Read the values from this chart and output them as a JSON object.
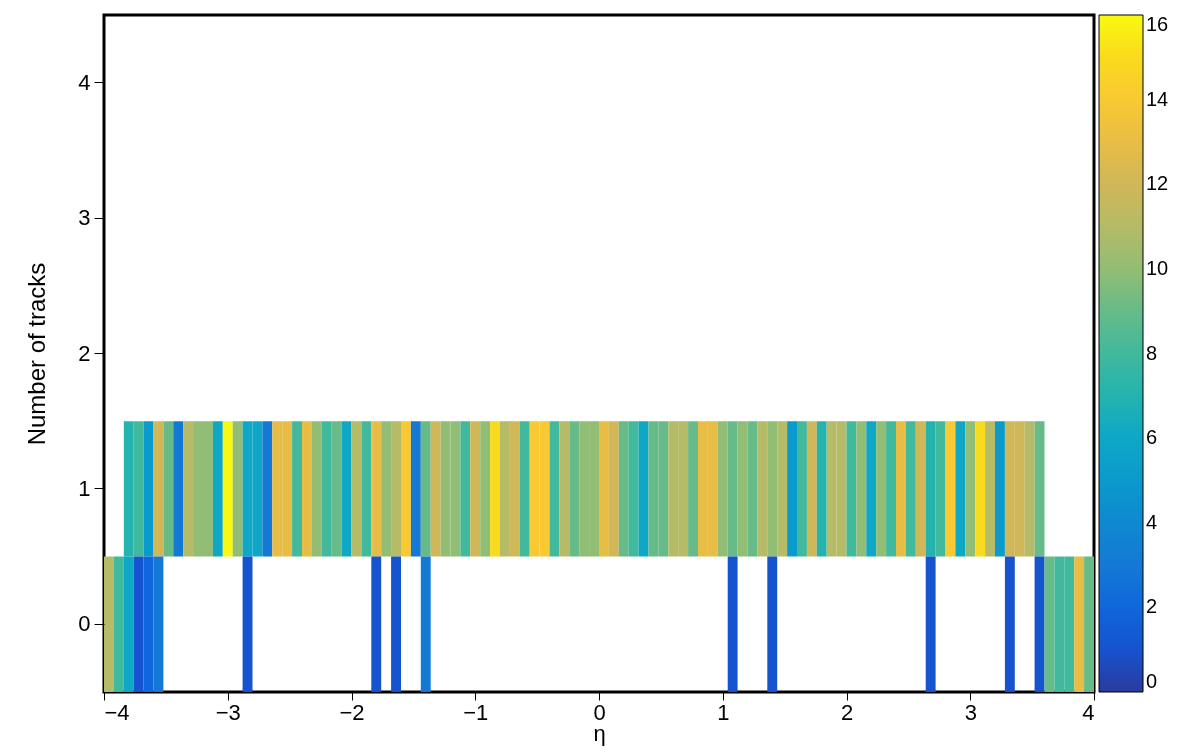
{
  "chart_data": {
    "type": "heatmap",
    "xlabel": "η",
    "ylabel": "Number of tracks",
    "x": [
      -3.96,
      -3.88,
      -3.8,
      -3.72,
      -3.64,
      -3.56,
      -3.48,
      -3.4,
      -3.32,
      -3.24,
      -3.16,
      -3.08,
      -3,
      -2.92,
      -2.84,
      -2.76,
      -2.68,
      -2.6,
      -2.52,
      -2.44,
      -2.36,
      -2.28,
      -2.2,
      -2.12,
      -2.04,
      -1.96,
      -1.88,
      -1.8,
      -1.72,
      -1.64,
      -1.56,
      -1.48,
      -1.4,
      -1.32,
      -1.24,
      -1.16,
      -1.08,
      -1,
      -0.92,
      -0.84,
      -0.76,
      -0.68,
      -0.6,
      -0.52,
      -0.44,
      -0.36,
      -0.28,
      -0.2,
      -0.12,
      -0.04,
      0.04,
      0.12,
      0.2,
      0.28,
      0.36,
      0.44,
      0.52,
      0.6,
      0.68,
      0.76,
      0.84,
      0.92,
      1,
      1.08,
      1.16,
      1.24,
      1.32,
      1.4,
      1.48,
      1.56,
      1.64,
      1.72,
      1.8,
      1.88,
      1.96,
      2.04,
      2.12,
      2.2,
      2.28,
      2.36,
      2.44,
      2.52,
      2.6,
      2.68,
      2.76,
      2.84,
      2.92,
      3,
      3.08,
      3.16,
      3.24,
      3.32,
      3.4,
      3.48,
      3.56,
      3.64,
      3.72,
      3.8,
      3.88,
      3.96
    ],
    "y_categories": [
      "4",
      "3",
      "2",
      "1",
      "0"
    ],
    "cells": [
      [
        null,
        null,
        null,
        null,
        null,
        null,
        null,
        null,
        null,
        null,
        null,
        null,
        null,
        null,
        null,
        null,
        null,
        null,
        null,
        null,
        null,
        null,
        null,
        null,
        null,
        null,
        null,
        null,
        null,
        null,
        null,
        null,
        null,
        null,
        null,
        null,
        null,
        null,
        null,
        null,
        null,
        null,
        null,
        null,
        null,
        null,
        null,
        null,
        null,
        null,
        null,
        null,
        null,
        null,
        null,
        null,
        null,
        null,
        null,
        null,
        null,
        null,
        null,
        null,
        null,
        null,
        null,
        null,
        null,
        null,
        null,
        null,
        null,
        null,
        null,
        null,
        null,
        null,
        null,
        null,
        null,
        null,
        null,
        null,
        null,
        null,
        null,
        null,
        null,
        null,
        null,
        null,
        null,
        null,
        null,
        null,
        null,
        null,
        null,
        null
      ],
      [
        null,
        null,
        null,
        null,
        null,
        null,
        null,
        null,
        null,
        null,
        null,
        null,
        null,
        null,
        null,
        null,
        null,
        null,
        null,
        null,
        null,
        null,
        null,
        null,
        null,
        null,
        null,
        null,
        null,
        null,
        null,
        null,
        null,
        null,
        null,
        null,
        null,
        null,
        null,
        null,
        null,
        null,
        null,
        null,
        null,
        null,
        null,
        null,
        null,
        null,
        null,
        null,
        null,
        null,
        null,
        null,
        null,
        null,
        null,
        null,
        null,
        null,
        null,
        null,
        null,
        null,
        null,
        null,
        null,
        null,
        null,
        null,
        null,
        null,
        null,
        null,
        null,
        null,
        null,
        null,
        null,
        null,
        null,
        null,
        null,
        null,
        null,
        null,
        null,
        null,
        null,
        null,
        null,
        null,
        null,
        null,
        null,
        null,
        null,
        null
      ],
      [
        null,
        null,
        null,
        null,
        null,
        null,
        null,
        null,
        null,
        null,
        null,
        null,
        null,
        null,
        null,
        null,
        null,
        null,
        null,
        null,
        null,
        null,
        null,
        null,
        null,
        null,
        null,
        null,
        null,
        null,
        null,
        null,
        null,
        null,
        null,
        null,
        null,
        null,
        null,
        null,
        null,
        null,
        null,
        null,
        null,
        null,
        null,
        null,
        null,
        null,
        null,
        null,
        null,
        null,
        null,
        null,
        null,
        null,
        null,
        null,
        null,
        null,
        null,
        null,
        null,
        null,
        null,
        null,
        null,
        null,
        null,
        null,
        null,
        null,
        null,
        null,
        null,
        null,
        null,
        null,
        null,
        null,
        null,
        null,
        null,
        null,
        null,
        null,
        null,
        null,
        null,
        null,
        null,
        null,
        null,
        null,
        null,
        null,
        null,
        null
      ],
      [
        null,
        null,
        7,
        8,
        5,
        12,
        9,
        3,
        11,
        10,
        10,
        6,
        16,
        10,
        6,
        6,
        3,
        13,
        13,
        8,
        13,
        10,
        8,
        9,
        6,
        11,
        8,
        13,
        10,
        11,
        14,
        3,
        9,
        12,
        10,
        10,
        8,
        12,
        10,
        15,
        11,
        12,
        8,
        14,
        14,
        8,
        11,
        9,
        10,
        10,
        13,
        12,
        9,
        8,
        6,
        9,
        9,
        11,
        11,
        9,
        13,
        13,
        10,
        9,
        10,
        9,
        11,
        10,
        11,
        5,
        8,
        12,
        7,
        11,
        11,
        8,
        10,
        6,
        10,
        8,
        13,
        8,
        12,
        7,
        8,
        14,
        6,
        10,
        15,
        11,
        5,
        12,
        12,
        11,
        9,
        null,
        null,
        null,
        null,
        null
      ],
      [
        11,
        8,
        6,
        1,
        2,
        3,
        null,
        null,
        null,
        null,
        null,
        null,
        null,
        null,
        1,
        null,
        null,
        null,
        null,
        null,
        null,
        null,
        null,
        null,
        null,
        null,
        null,
        1,
        null,
        1,
        null,
        null,
        3,
        null,
        null,
        null,
        null,
        null,
        null,
        null,
        null,
        null,
        null,
        null,
        null,
        null,
        null,
        null,
        null,
        null,
        null,
        null,
        null,
        null,
        null,
        null,
        null,
        null,
        null,
        null,
        null,
        null,
        null,
        1,
        null,
        null,
        null,
        1,
        null,
        null,
        null,
        null,
        null,
        null,
        null,
        null,
        null,
        null,
        null,
        null,
        null,
        null,
        null,
        1,
        null,
        null,
        null,
        null,
        null,
        null,
        null,
        1,
        null,
        null,
        1,
        9,
        8,
        8,
        13,
        9
      ]
    ],
    "xlim": [
      -4,
      4
    ],
    "xticks": [
      -4,
      -3,
      -2,
      -1,
      0,
      1,
      2,
      3,
      4
    ],
    "clim": [
      0,
      16
    ],
    "cticks": [
      0,
      2,
      4,
      6,
      8,
      10,
      12,
      14,
      16
    ]
  }
}
